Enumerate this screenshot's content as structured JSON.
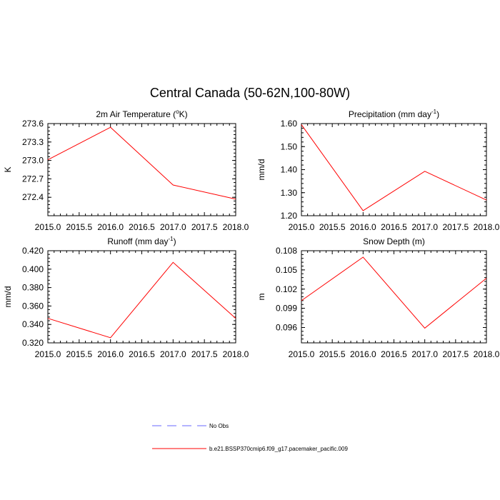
{
  "figure": {
    "title": "Central Canada (50-62N,100-80W)"
  },
  "chart_data": [
    {
      "type": "line",
      "title": "2m Air Temperature (",
      "title_sup": "o",
      "title_end": "K)",
      "xlabel": "",
      "ylabel": "K",
      "x": [
        2015.0,
        2016.0,
        2017.0,
        2018.0
      ],
      "xlim": [
        2015.0,
        2018.0
      ],
      "xticks": [
        "2015.0",
        "2015.5",
        "2016.0",
        "2016.5",
        "2017.0",
        "2017.5",
        "2018.0"
      ],
      "ylim": [
        272.1,
        273.6
      ],
      "yticks": [
        "272.4",
        "272.7",
        "273.0",
        "273.3",
        "273.6"
      ],
      "series": [
        {
          "name": "b.e21.BSSP370cmip6.f09_g17.pacemaker_pacific.009",
          "values": [
            273.01,
            273.54,
            272.6,
            272.37
          ]
        }
      ]
    },
    {
      "type": "line",
      "title": "Precipitation (mm day",
      "title_sup": "-1",
      "title_end": ")",
      "xlabel": "",
      "ylabel": "mm/d",
      "x": [
        2015.0,
        2016.0,
        2017.0,
        2018.0
      ],
      "xlim": [
        2015.0,
        2018.0
      ],
      "xticks": [
        "2015.0",
        "2015.5",
        "2016.0",
        "2016.5",
        "2017.0",
        "2017.5",
        "2018.0"
      ],
      "ylim": [
        1.2,
        1.6
      ],
      "yticks": [
        "1.20",
        "1.30",
        "1.40",
        "1.50",
        "1.60"
      ],
      "series": [
        {
          "name": "b.e21.BSSP370cmip6.f09_g17.pacemaker_pacific.009",
          "values": [
            1.595,
            1.222,
            1.393,
            1.268
          ]
        }
      ]
    },
    {
      "type": "line",
      "title": "Runoff (mm day",
      "title_sup": "-1",
      "title_end": ")",
      "xlabel": "",
      "ylabel": "mm/d",
      "x": [
        2015.0,
        2016.0,
        2017.0,
        2018.0
      ],
      "xlim": [
        2015.0,
        2018.0
      ],
      "xticks": [
        "2015.0",
        "2015.5",
        "2016.0",
        "2016.5",
        "2017.0",
        "2017.5",
        "2018.0"
      ],
      "ylim": [
        0.32,
        0.42
      ],
      "yticks": [
        "0.320",
        "0.340",
        "0.360",
        "0.380",
        "0.400",
        "0.420"
      ],
      "series": [
        {
          "name": "b.e21.BSSP370cmip6.f09_g17.pacemaker_pacific.009",
          "values": [
            0.3466,
            0.3256,
            0.4074,
            0.3466
          ]
        }
      ]
    },
    {
      "type": "line",
      "title": "Snow Depth (m)",
      "title_sup": "",
      "title_end": "",
      "xlabel": "",
      "ylabel": "m",
      "x": [
        2015.0,
        2016.0,
        2017.0,
        2018.0
      ],
      "xlim": [
        2015.0,
        2018.0
      ],
      "xticks": [
        "2015.0",
        "2015.5",
        "2016.0",
        "2016.5",
        "2017.0",
        "2017.5",
        "2018.0"
      ],
      "ylim": [
        0.0936,
        0.108
      ],
      "yticks": [
        "0.096",
        "0.099",
        "0.102",
        "0.105",
        "0.108"
      ],
      "series": [
        {
          "name": "b.e21.BSSP370cmip6.f09_g17.pacemaker_pacific.009",
          "values": [
            0.1002,
            0.107,
            0.0959,
            0.1037
          ]
        }
      ]
    }
  ],
  "legend": {
    "placement": "bottom-center",
    "entries": [
      {
        "label": "No Obs",
        "color": "#6a6aff",
        "style": "dashed"
      },
      {
        "label": "b.e21.BSSP370cmip6.f09_g17.pacemaker_pacific.009",
        "color": "#ff0000",
        "style": "solid"
      }
    ]
  },
  "colors": {
    "series": "#ff0000",
    "axes": "#000000"
  }
}
